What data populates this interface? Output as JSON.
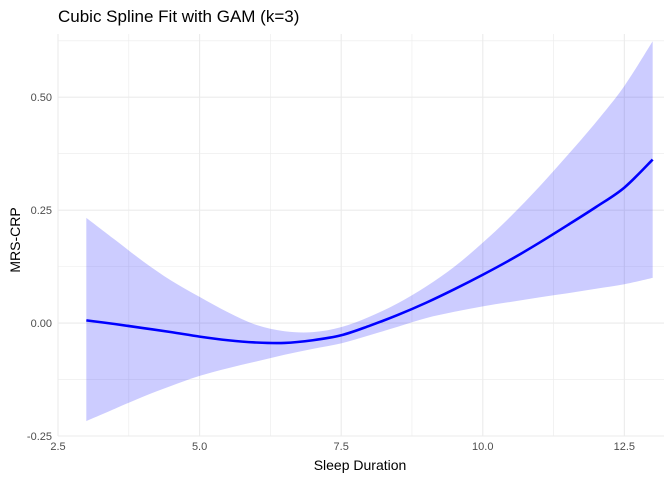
{
  "chart_data": {
    "type": "line",
    "title": "Cubic Spline Fit with GAM (k=3)",
    "xlabel": "Sleep Duration",
    "ylabel": "MRS-CRP",
    "xlim": [
      2.5,
      13.2
    ],
    "ylim": [
      -0.25,
      0.64
    ],
    "x_ticks": [
      2.5,
      5.0,
      7.5,
      10.0,
      12.5
    ],
    "x_tick_labels": [
      "2.5",
      "5.0",
      "7.5",
      "10.0",
      "12.5"
    ],
    "y_ticks": [
      -0.25,
      0.0,
      0.25,
      0.5
    ],
    "y_tick_labels": [
      "-0.25",
      "0.00",
      "0.25",
      "0.50"
    ],
    "grid": true,
    "legend": "none",
    "colors": {
      "line": "#0000FF",
      "band": "#0000FF",
      "grid": "#ebebeb"
    },
    "x": [
      3.0,
      3.5,
      4.0,
      4.5,
      5.0,
      5.5,
      6.0,
      6.5,
      7.0,
      7.5,
      8.0,
      8.5,
      9.0,
      9.5,
      10.0,
      10.5,
      11.0,
      11.5,
      12.0,
      12.5,
      13.0
    ],
    "series": [
      {
        "values": [
          0.006,
          -0.002,
          -0.011,
          -0.02,
          -0.03,
          -0.038,
          -0.043,
          -0.044,
          -0.038,
          -0.027,
          -0.006,
          0.018,
          0.045,
          0.075,
          0.107,
          0.141,
          0.178,
          0.217,
          0.257,
          0.3,
          0.362
        ],
        "lower": [
          -0.217,
          -0.19,
          -0.163,
          -0.139,
          -0.117,
          -0.1,
          -0.085,
          -0.07,
          -0.057,
          -0.045,
          -0.027,
          -0.008,
          0.011,
          0.025,
          0.037,
          0.047,
          0.057,
          0.066,
          0.076,
          0.086,
          0.1
        ],
        "upper": [
          0.233,
          0.185,
          0.137,
          0.094,
          0.058,
          0.024,
          -0.004,
          -0.018,
          -0.02,
          -0.009,
          0.014,
          0.044,
          0.081,
          0.125,
          0.178,
          0.237,
          0.302,
          0.372,
          0.445,
          0.525,
          0.624
        ]
      }
    ]
  }
}
